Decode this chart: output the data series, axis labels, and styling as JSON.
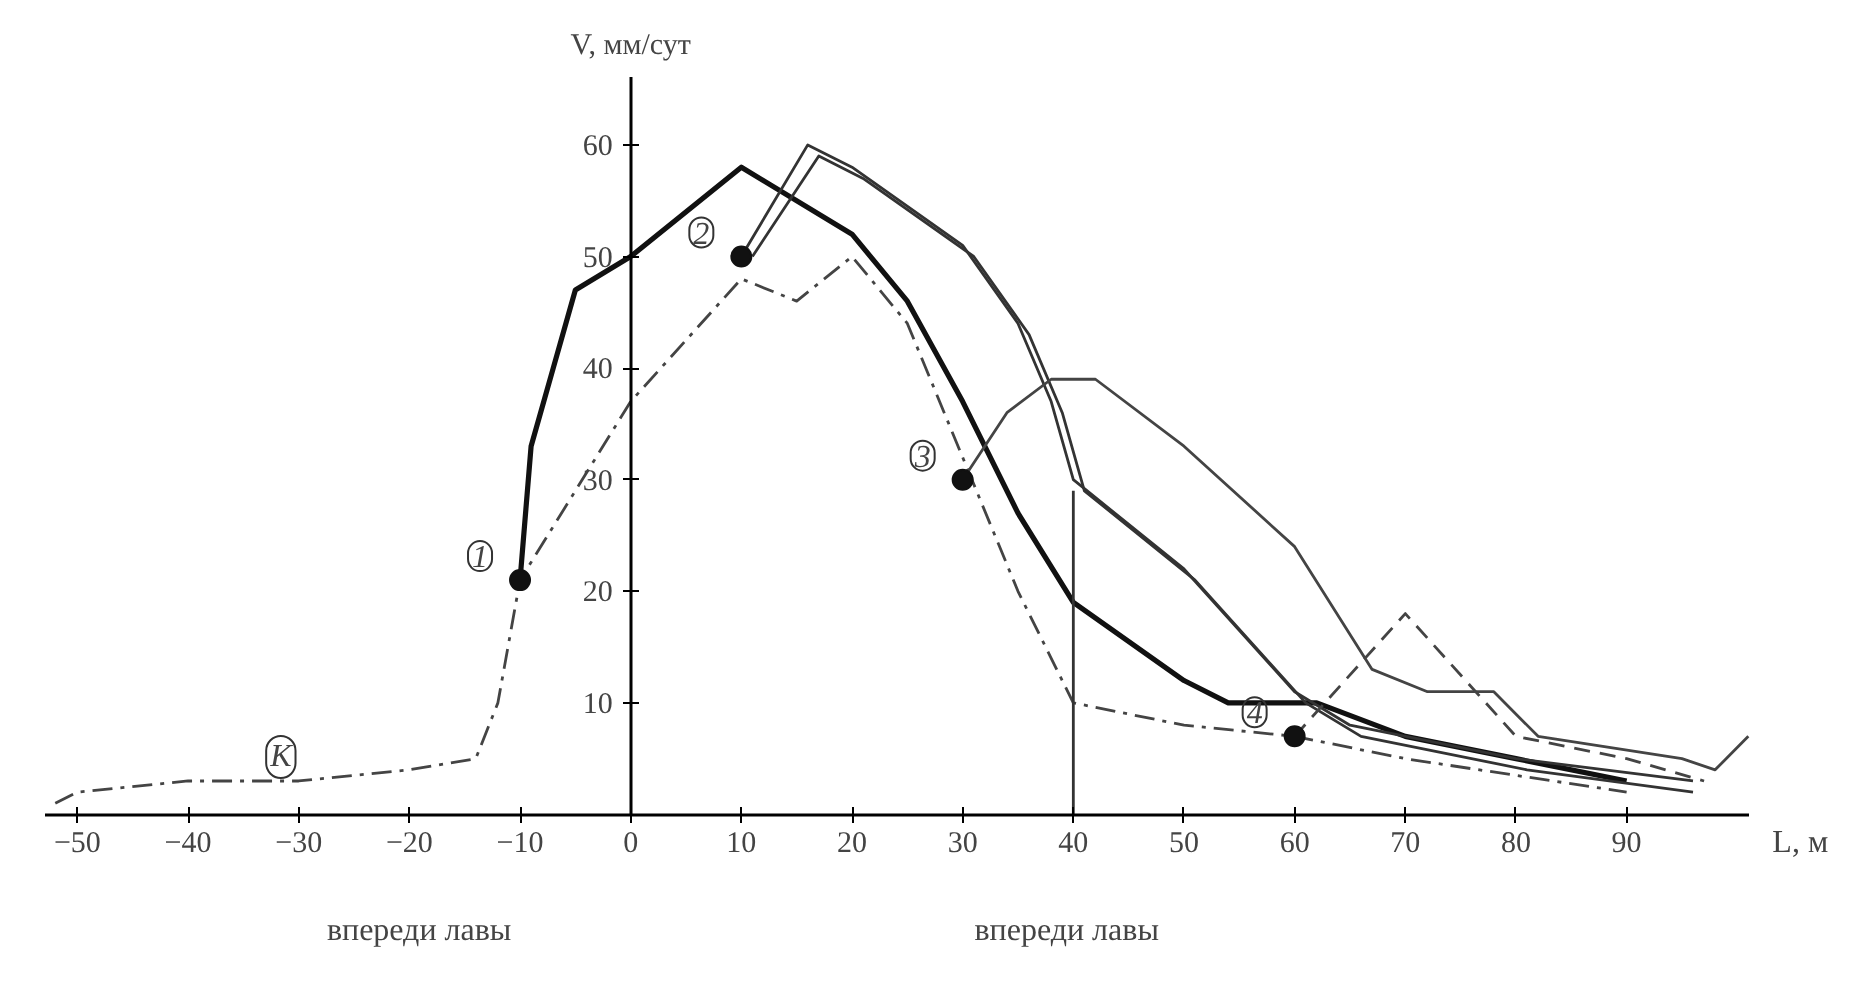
{
  "chart_data": {
    "type": "line",
    "xlabel": "L, м",
    "ylabel": "V, мм/сут",
    "xlim": [
      -53,
      101
    ],
    "ylim": [
      0,
      66
    ],
    "xticks": [
      -50,
      -40,
      -30,
      -20,
      -10,
      0,
      10,
      20,
      30,
      40,
      50,
      60,
      70,
      80,
      90
    ],
    "yticks": [
      10,
      20,
      30,
      40,
      50,
      60
    ],
    "grid": false,
    "series": [
      {
        "color": "#111111",
        "line_style": "solid",
        "x": [
          -10,
          -9,
          -7,
          -5,
          0,
          10,
          20,
          25,
          30,
          35,
          40,
          50,
          54,
          62,
          70,
          80,
          90
        ],
        "values": [
          21,
          33,
          40,
          47,
          50,
          58,
          52,
          46,
          37,
          27,
          19,
          12,
          10,
          10,
          7,
          5,
          3
        ]
      },
      {
        "color": "#333333",
        "line_style": "solid",
        "x": [
          10,
          16,
          20,
          30,
          35,
          38,
          40,
          50,
          60,
          65,
          80,
          96
        ],
        "values": [
          50,
          60,
          58,
          51,
          44,
          37,
          30,
          22,
          11,
          8,
          5,
          3
        ]
      },
      {
        "color": "#333333",
        "line_style": "solid",
        "x": [
          11,
          17,
          21,
          31,
          36,
          39,
          41,
          51,
          61,
          66,
          81,
          96
        ],
        "values": [
          50,
          59,
          57,
          50,
          43,
          36,
          29,
          21,
          10,
          7,
          4,
          2
        ]
      },
      {
        "color": "#444444",
        "line_style": "solid",
        "x": [
          30,
          34,
          38,
          42,
          50,
          60,
          67,
          72,
          78,
          82,
          95,
          98,
          101
        ],
        "values": [
          30,
          36,
          39,
          39,
          33,
          24,
          13,
          11,
          11,
          7,
          5,
          4,
          7
        ]
      },
      {
        "color": "#444444",
        "line_style": "dashdot",
        "x": [
          -52,
          -50,
          -40,
          -30,
          -20,
          -14,
          -12,
          -10,
          0,
          10,
          15,
          20,
          25,
          30,
          35,
          40,
          50,
          60,
          70,
          90
        ],
        "values": [
          1,
          2,
          3,
          3,
          4,
          5,
          10,
          21,
          37,
          48,
          46,
          50,
          44,
          32,
          20,
          10,
          8,
          7,
          5,
          2
        ]
      },
      {
        "color": "#444444",
        "line_style": "dashed",
        "x": [
          60,
          70,
          80,
          90,
          97
        ],
        "values": [
          7,
          18,
          7,
          5,
          3
        ]
      },
      {
        "color": "#333333",
        "line_style": "solid",
        "x": [
          40,
          40
        ],
        "values": [
          0,
          29
        ]
      },
      {
        "type": "scatter",
        "color": "#111111",
        "x": [
          -10,
          10,
          30,
          60
        ],
        "values": [
          21,
          50,
          30,
          7
        ]
      }
    ],
    "annotations": [
      {
        "text": "1",
        "x": -10,
        "y": 21
      },
      {
        "text": "2",
        "x": 10,
        "y": 50
      },
      {
        "text": "3",
        "x": 30,
        "y": 30
      },
      {
        "text": "4",
        "x": 60,
        "y": 7
      },
      {
        "text": "K",
        "x": -28,
        "y": 3
      },
      "впереди лавы",
      "впереди лавы"
    ]
  }
}
